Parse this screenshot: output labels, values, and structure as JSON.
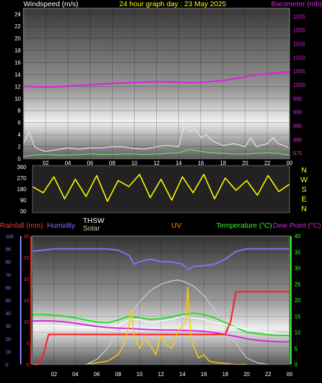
{
  "header": {
    "left": "Windspeed (m/s)",
    "center": "24 hour graph day : 23 May 2025",
    "right": "Barometer (mb)"
  },
  "colors": {
    "gust": "#e0e0e0",
    "avg": "#66dd66",
    "barometer": "#dd22dd",
    "direction": "#ffff00",
    "rain": "#ff2020",
    "humidity": "#7777ff",
    "temperature": "#22dd22",
    "dewpoint": "#dd22dd",
    "solar": "#ffcc00",
    "uv": "#cccccc",
    "thsw": "#ffffff",
    "uv_label": "#ff9900",
    "temp_axis": "#33ff33",
    "rain_axis": "#ff3333",
    "hum_axis": "#8888ff"
  },
  "chart_data": [
    {
      "type": "line",
      "name": "wind-barometer",
      "x_ticks": [
        "02",
        "04",
        "06",
        "08",
        "10",
        "12",
        "14",
        "16",
        "18",
        "20",
        "22",
        "00"
      ],
      "ylabel": "Windspeed (m/s)",
      "y_ticks": [
        "0",
        "2",
        "4",
        "6",
        "8",
        "10",
        "12",
        "14",
        "16",
        "18",
        "20",
        "22",
        "24"
      ],
      "ylim": [
        0,
        25
      ],
      "y2label": "Barometer (mb)",
      "y2_ticks": [
        "975",
        "980",
        "985",
        "990",
        "995",
        "1000",
        "1005",
        "1010",
        "1015",
        "1020",
        "1025"
      ],
      "y2lim": [
        973,
        1028
      ],
      "grid": true,
      "series": [
        {
          "name": "Barometer (mb)",
          "axis": "right",
          "x": [
            0,
            1,
            2,
            3,
            4,
            5,
            6,
            7,
            8,
            9,
            10,
            11,
            12,
            13,
            14,
            15,
            16,
            17,
            18,
            19,
            20,
            21,
            22,
            23,
            24
          ],
          "values": [
            999.5,
            999.3,
            999.2,
            999.3,
            999.5,
            999.8,
            1000.0,
            1000.3,
            1000.5,
            1000.7,
            1000.9,
            1001.0,
            1001.1,
            1001.1,
            1001.0,
            1000.8,
            1000.9,
            1001.2,
            1001.6,
            1002.2,
            1003.0,
            1003.6,
            1004.0,
            1004.5,
            1004.8
          ]
        },
        {
          "axis": "left",
          "x": [
            0,
            0.5,
            1,
            1.5,
            2,
            3,
            4,
            5,
            6,
            7,
            8,
            9,
            10,
            11,
            12,
            13,
            14,
            14.5,
            15,
            15.5,
            16,
            16.5,
            17,
            18,
            19,
            20,
            20.5,
            21,
            22,
            22.5,
            23,
            24
          ],
          "values": [
            2.5,
            4.5,
            2.0,
            1.5,
            1.2,
            1.5,
            1.8,
            1.6,
            1.8,
            1.8,
            2.0,
            2.0,
            1.7,
            1.6,
            2.0,
            2.2,
            2.0,
            5.5,
            4.5,
            5.0,
            3.5,
            4.0,
            3.0,
            2.2,
            2.5,
            2.0,
            3.5,
            2.0,
            2.5,
            3.5,
            2.5,
            1.8
          ]
        },
        {
          "axis": "left",
          "x": [
            0,
            1,
            2,
            3,
            4,
            5,
            6,
            7,
            8,
            9,
            10,
            11,
            12,
            13,
            14,
            15,
            16,
            17,
            18,
            19,
            20,
            21,
            22,
            23,
            24
          ],
          "values": [
            0.4,
            0.6,
            0.7,
            0.6,
            0.6,
            0.7,
            0.8,
            0.7,
            0.7,
            0.8,
            0.8,
            0.7,
            0.8,
            0.9,
            1.0,
            1.5,
            1.2,
            1.0,
            0.9,
            0.8,
            0.8,
            0.9,
            1.0,
            0.9,
            0.6
          ]
        }
      ]
    },
    {
      "type": "line",
      "name": "wind-direction",
      "x_ticks": [],
      "y_ticks": [
        "360",
        "270",
        "180",
        "90",
        "00"
      ],
      "ylim": [
        0,
        360
      ],
      "direction_letters": [
        "N",
        "W",
        "S",
        "E",
        "N"
      ],
      "series": [
        {
          "axis": "left",
          "x": [
            0,
            1,
            2,
            3,
            4,
            5,
            6,
            7,
            8,
            9,
            10,
            11,
            12,
            13,
            14,
            15,
            16,
            17,
            18,
            19,
            20,
            21,
            22,
            23,
            24
          ],
          "values": [
            200,
            150,
            280,
            100,
            260,
            120,
            290,
            80,
            250,
            200,
            300,
            110,
            260,
            90,
            280,
            150,
            300,
            100,
            270,
            170,
            250,
            130,
            290,
            160,
            220
          ]
        }
      ]
    },
    {
      "type": "line",
      "name": "rain-humidity-temp",
      "x_ticks": [
        "02",
        "04",
        "06",
        "08",
        "10",
        "12",
        "14",
        "16",
        "18",
        "20",
        "22",
        "00"
      ],
      "labels": {
        "rainfall": "Rainfall (mm)",
        "humidity": "Humidity",
        "thsw": "THSW",
        "solar": "Solar",
        "uv": "UV",
        "temperature": "Temperature (°C)",
        "dewpoint": "Dew Point (°C)"
      },
      "hum_ticks": [
        "0",
        "10",
        "20",
        "30",
        "40",
        "50",
        "60",
        "70",
        "80",
        "90",
        "100"
      ],
      "hum_lim": [
        0,
        100
      ],
      "rain_ticks": [
        "0",
        "5",
        "10",
        "15",
        "20",
        "25",
        "30"
      ],
      "rain_lim": [
        0,
        30
      ],
      "temp_ticks": [
        "0",
        "5",
        "10",
        "15",
        "20",
        "25",
        "30",
        "35",
        "40"
      ],
      "temp_lim": [
        0,
        40
      ],
      "grid": true,
      "series": [
        {
          "name": "Humidity",
          "axis": "humidity",
          "x": [
            0,
            2,
            4,
            6,
            7,
            8,
            9,
            9.5,
            10,
            11,
            12,
            13,
            14,
            14.5,
            15,
            16,
            17,
            18,
            19,
            20,
            21,
            22,
            23,
            24
          ],
          "values": [
            88,
            90,
            90,
            90,
            90,
            89,
            85,
            78,
            80,
            82,
            80,
            80,
            78,
            74,
            76,
            77,
            78,
            82,
            88,
            90,
            90,
            90,
            90,
            90
          ]
        },
        {
          "name": "Rainfall (mm)",
          "axis": "rain",
          "x": [
            0,
            0.5,
            1,
            1.5,
            4,
            6,
            8,
            10,
            12,
            14,
            16,
            18,
            18.5,
            19,
            24
          ],
          "values": [
            0,
            0,
            2,
            7,
            7,
            7,
            7,
            7,
            7,
            7,
            7,
            7,
            10,
            17,
            17
          ]
        },
        {
          "name": "Temperature (°C)",
          "axis": "temp",
          "x": [
            0,
            1,
            2,
            3,
            4,
            5,
            6,
            7,
            8,
            9,
            10,
            11,
            12,
            13,
            14,
            15,
            16,
            17,
            18,
            19,
            20,
            21,
            22,
            23,
            24
          ],
          "values": [
            15.5,
            15.6,
            15.3,
            15.0,
            14.5,
            13.8,
            13.2,
            13.0,
            13.8,
            15.0,
            14.5,
            14.0,
            14.2,
            14.8,
            15.5,
            16.0,
            15.5,
            14.5,
            13.0,
            11.5,
            10.0,
            9.5,
            9.2,
            9.0,
            9.0
          ]
        },
        {
          "name": "Dew Point (°C)",
          "axis": "temp",
          "x": [
            0,
            1,
            2,
            3,
            4,
            5,
            6,
            7,
            8,
            9,
            10,
            11,
            12,
            13,
            14,
            15,
            16,
            17,
            18,
            19,
            20,
            21,
            22,
            23,
            24
          ],
          "values": [
            13.5,
            13.6,
            13.5,
            13.3,
            12.8,
            12.3,
            11.8,
            11.5,
            11.3,
            11.2,
            11.0,
            10.8,
            10.7,
            10.7,
            10.6,
            10.5,
            10.3,
            9.9,
            9.3,
            8.7,
            8.0,
            7.5,
            7.2,
            7.0,
            7.0
          ]
        },
        {
          "name": "UV",
          "axis": "temp",
          "x": [
            5,
            6,
            7,
            8,
            9,
            10,
            11,
            12,
            13,
            13.5,
            14,
            15,
            16,
            17,
            18,
            19,
            20,
            21,
            22
          ],
          "values": [
            0,
            1.5,
            5,
            10,
            15,
            19.5,
            23,
            25,
            26,
            26.3,
            26,
            24.5,
            21.5,
            17,
            12,
            6.5,
            2,
            0.5,
            0
          ]
        },
        {
          "name": "Solar",
          "axis": "temp",
          "x": [
            5,
            6,
            7,
            8,
            8.5,
            9,
            9.2,
            9.5,
            10,
            10.5,
            11,
            11.5,
            12,
            12.5,
            13,
            13.5,
            14,
            14.3,
            14.5,
            14.8,
            15,
            15.5,
            16,
            16.5,
            17,
            18,
            19,
            20
          ],
          "values": [
            0,
            0.5,
            1,
            3,
            6,
            12,
            17,
            9,
            5,
            8,
            6,
            3,
            9,
            6,
            5,
            10,
            12,
            13,
            24,
            8,
            6,
            2,
            3,
            1,
            0.6,
            0.3,
            0,
            0
          ]
        },
        {
          "name": "THSW",
          "axis": "temp",
          "x": [
            0,
            2,
            4,
            6,
            7,
            8,
            9,
            10,
            11,
            12,
            13,
            14,
            15,
            16,
            17,
            18,
            19,
            20,
            22,
            24
          ],
          "values": [
            12,
            12,
            11.5,
            11.5,
            11.5,
            12,
            14,
            14,
            13,
            13.5,
            14,
            15,
            14.5,
            14,
            13,
            12.5,
            11.5,
            11,
            10,
            9.5
          ]
        }
      ]
    }
  ]
}
